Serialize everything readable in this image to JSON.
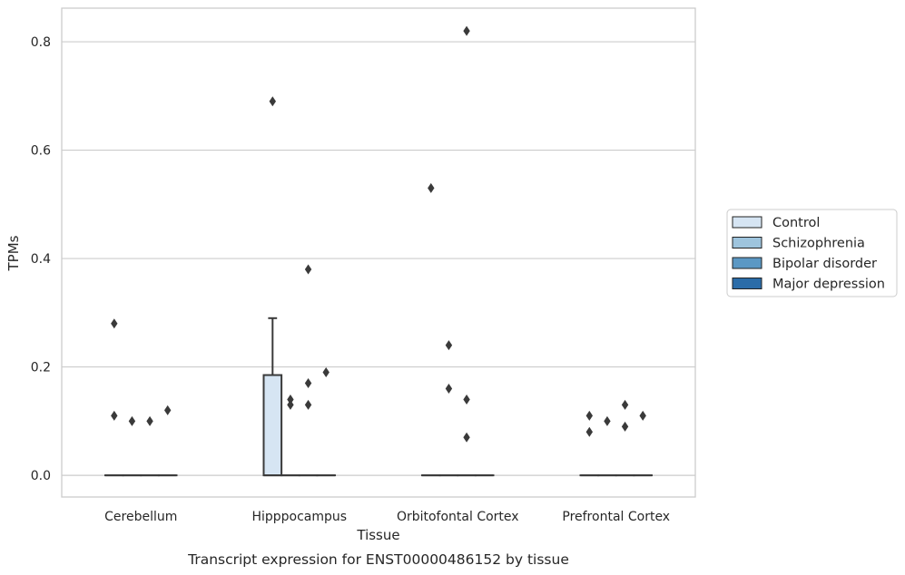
{
  "chart_data": {
    "type": "box",
    "title": "",
    "caption": "Transcript expression for ENST00000486152 by tissue",
    "xlabel": "Tissue",
    "ylabel": "TPMs",
    "ylim": [
      -0.04,
      0.862
    ],
    "yticks": [
      0.0,
      0.2,
      0.4,
      0.6,
      0.8
    ],
    "ytick_labels": [
      "0.0",
      "0.2",
      "0.4",
      "0.6",
      "0.8"
    ],
    "grid": "horizontal",
    "legend_position": "right",
    "categories": [
      "Cerebellum",
      "Hipppocampus",
      "Orbitofontal Cortex",
      "Prefrontal Cortex"
    ],
    "series": [
      {
        "name": "Control",
        "color": "#d6e5f3",
        "boxes": [
          {
            "q1": 0.0,
            "median": 0.0,
            "q3": 0.0,
            "whisker_low": 0.0,
            "whisker_high": 0.0,
            "outliers": [
              0.28,
              0.11
            ]
          },
          {
            "q1": 0.0,
            "median": 0.0,
            "q3": 0.185,
            "whisker_low": 0.0,
            "whisker_high": 0.29,
            "outliers": [
              0.69
            ]
          },
          {
            "q1": 0.0,
            "median": 0.0,
            "q3": 0.0,
            "whisker_low": 0.0,
            "whisker_high": 0.0,
            "outliers": [
              0.53
            ]
          },
          {
            "q1": 0.0,
            "median": 0.0,
            "q3": 0.0,
            "whisker_low": 0.0,
            "whisker_high": 0.0,
            "outliers": [
              0.11,
              0.08
            ]
          }
        ]
      },
      {
        "name": "Schizophrenia",
        "color": "#9ec4dd",
        "boxes": [
          {
            "q1": 0.0,
            "median": 0.0,
            "q3": 0.0,
            "whisker_low": 0.0,
            "whisker_high": 0.0,
            "outliers": [
              0.1
            ]
          },
          {
            "q1": 0.0,
            "median": 0.0,
            "q3": 0.0,
            "whisker_low": 0.0,
            "whisker_high": 0.0,
            "outliers": [
              0.14,
              0.13
            ]
          },
          {
            "q1": 0.0,
            "median": 0.0,
            "q3": 0.0,
            "whisker_low": 0.0,
            "whisker_high": 0.0,
            "outliers": [
              0.24,
              0.16
            ]
          },
          {
            "q1": 0.0,
            "median": 0.0,
            "q3": 0.0,
            "whisker_low": 0.0,
            "whisker_high": 0.0,
            "outliers": [
              0.1
            ]
          }
        ]
      },
      {
        "name": "Bipolar disorder",
        "color": "#5b98c4",
        "boxes": [
          {
            "q1": 0.0,
            "median": 0.0,
            "q3": 0.0,
            "whisker_low": 0.0,
            "whisker_high": 0.0,
            "outliers": [
              0.1
            ]
          },
          {
            "q1": 0.0,
            "median": 0.0,
            "q3": 0.0,
            "whisker_low": 0.0,
            "whisker_high": 0.0,
            "outliers": [
              0.38,
              0.17,
              0.13
            ]
          },
          {
            "q1": 0.0,
            "median": 0.0,
            "q3": 0.0,
            "whisker_low": 0.0,
            "whisker_high": 0.0,
            "outliers": [
              0.82,
              0.14,
              0.07
            ]
          },
          {
            "q1": 0.0,
            "median": 0.0,
            "q3": 0.0,
            "whisker_low": 0.0,
            "whisker_high": 0.0,
            "outliers": [
              0.13,
              0.09
            ]
          }
        ]
      },
      {
        "name": "Major depression",
        "color": "#2b6ca8",
        "boxes": [
          {
            "q1": 0.0,
            "median": 0.0,
            "q3": 0.0,
            "whisker_low": 0.0,
            "whisker_high": 0.0,
            "outliers": [
              0.12
            ]
          },
          {
            "q1": 0.0,
            "median": 0.0,
            "q3": 0.0,
            "whisker_low": 0.0,
            "whisker_high": 0.0,
            "outliers": [
              0.19
            ]
          },
          {
            "q1": 0.0,
            "median": 0.0,
            "q3": 0.0,
            "whisker_low": 0.0,
            "whisker_high": 0.0,
            "outliers": []
          },
          {
            "q1": 0.0,
            "median": 0.0,
            "q3": 0.0,
            "whisker_low": 0.0,
            "whisker_high": 0.0,
            "outliers": [
              0.11
            ]
          }
        ]
      }
    ]
  },
  "colors": {
    "axis_frame": "#cccccc",
    "grid": "#cccccc",
    "box_edge": "#3a3a3a",
    "outlier": "#3a3a3a"
  }
}
